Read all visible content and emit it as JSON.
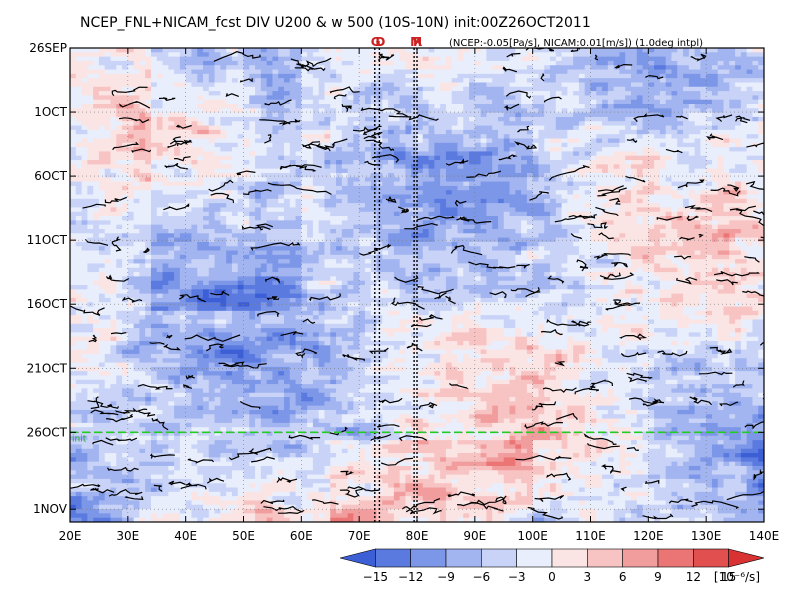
{
  "chart_data": {
    "type": "heatmap",
    "title": "NCEP_FNL+NICAM_fcst DIV U200 & w 500 (10S-10N) init:00Z26OCT2011",
    "note": "(NCEP:-0.05[Pa/s], NICAM:0.01[m/s]) (1.0deg intpl)",
    "x_axis": {
      "range": [
        20,
        140
      ],
      "ticks": [
        "20E",
        "30E",
        "40E",
        "50E",
        "60E",
        "70E",
        "80E",
        "90E",
        "100E",
        "110E",
        "120E",
        "130E",
        "140E"
      ],
      "tick_values": [
        20,
        30,
        40,
        50,
        60,
        70,
        80,
        90,
        100,
        110,
        120,
        130,
        140
      ]
    },
    "y_axis": {
      "range": [
        "2011-09-26",
        "2011-11-02"
      ],
      "ticks": [
        "26SEP",
        "1OCT",
        "6OCT",
        "11OCT",
        "16OCT",
        "21OCT",
        "26OCT",
        "1NOV"
      ],
      "tick_dates": [
        "2011-09-26",
        "2011-10-01",
        "2011-10-06",
        "2011-10-11",
        "2011-10-16",
        "2011-10-21",
        "2011-10-26",
        "2011-11-01"
      ],
      "direction": "time increases downward"
    },
    "markers": [
      {
        "label": "G",
        "lon": 72.7
      },
      {
        "label": "D",
        "lon": 73.5
      },
      {
        "label": "M",
        "lon": 79.5
      },
      {
        "label": "R",
        "lon": 80.0
      }
    ],
    "init_line": {
      "date": "2011-10-26",
      "label": "init",
      "color": "#22cc22"
    },
    "colorbar": {
      "levels": [
        -15,
        -12,
        -9,
        -6,
        -3,
        0,
        3,
        6,
        9,
        12,
        15
      ],
      "labels": [
        "−15",
        "−12",
        "−9",
        "−6",
        "−3",
        "0",
        "3",
        "6",
        "9",
        "12",
        "15"
      ],
      "unit": "[10⁻⁶/s]",
      "colors": [
        "#3c5fd6",
        "#5a7ae0",
        "#7d97e8",
        "#a3b5f0",
        "#c8d3f7",
        "#e8eefc",
        "#fbe4e4",
        "#f7c3c3",
        "#f29d9d",
        "#eb7575",
        "#e24f4f",
        "#d83232"
      ]
    },
    "grid": true,
    "contour": "black lines for w 500 threshold"
  }
}
